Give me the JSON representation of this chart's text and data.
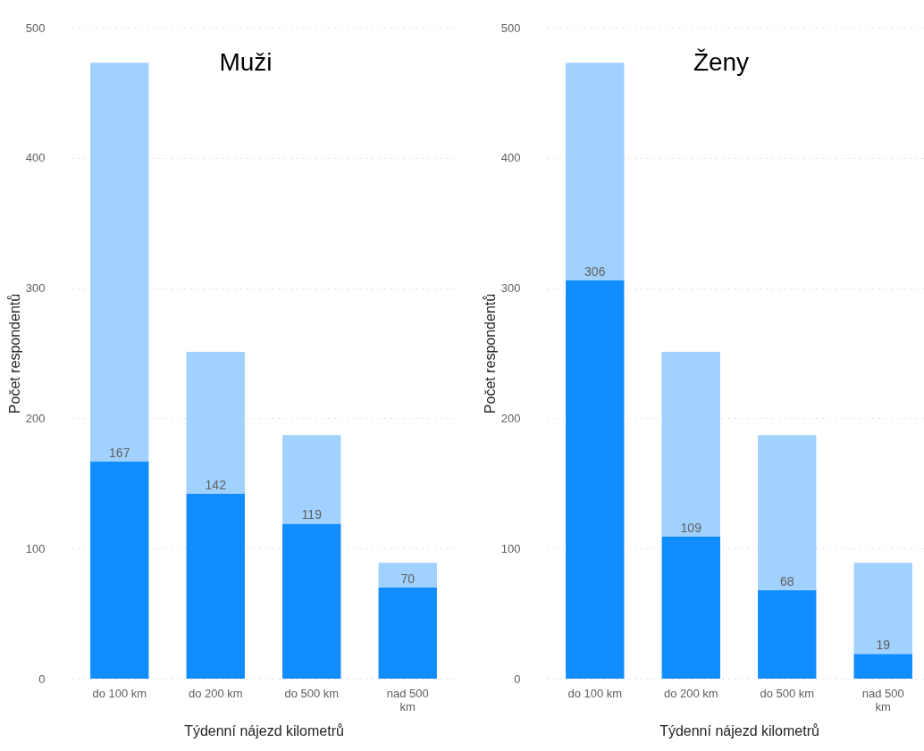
{
  "chart_data": [
    {
      "type": "bar",
      "stacked": true,
      "title": "Muži",
      "xlabel": "Týdenní nájezd kilometrů",
      "ylabel": "Počet respondentů",
      "categories": [
        "do 100 km",
        "do 200 km",
        "do 500 km",
        "nad 500 km"
      ],
      "ylim": [
        0,
        500
      ],
      "yticks": [
        0,
        100,
        200,
        300,
        400,
        500
      ],
      "grid": "y",
      "series": [
        {
          "color": "#118dff",
          "values": [
            167,
            142,
            119,
            70
          ],
          "value_labels": [
            "167",
            "142",
            "119",
            "70"
          ]
        },
        {
          "color": "#a0d1ff",
          "values": [
            306,
            109,
            68,
            19
          ]
        }
      ]
    },
    {
      "type": "bar",
      "stacked": true,
      "title": "Ženy",
      "xlabel": "Týdenní nájezd kilometrů",
      "ylabel": "Počet respondentů",
      "categories": [
        "do 100 km",
        "do 200 km",
        "do 500 km",
        "nad 500 km"
      ],
      "ylim": [
        0,
        500
      ],
      "yticks": [
        0,
        100,
        200,
        300,
        400,
        500
      ],
      "grid": "y",
      "series": [
        {
          "color": "#118dff",
          "values": [
            306,
            109,
            68,
            19
          ],
          "value_labels": [
            "306",
            "109",
            "68",
            "19"
          ]
        },
        {
          "color": "#a0d1ff",
          "values": [
            167,
            142,
            119,
            70
          ]
        }
      ]
    }
  ]
}
